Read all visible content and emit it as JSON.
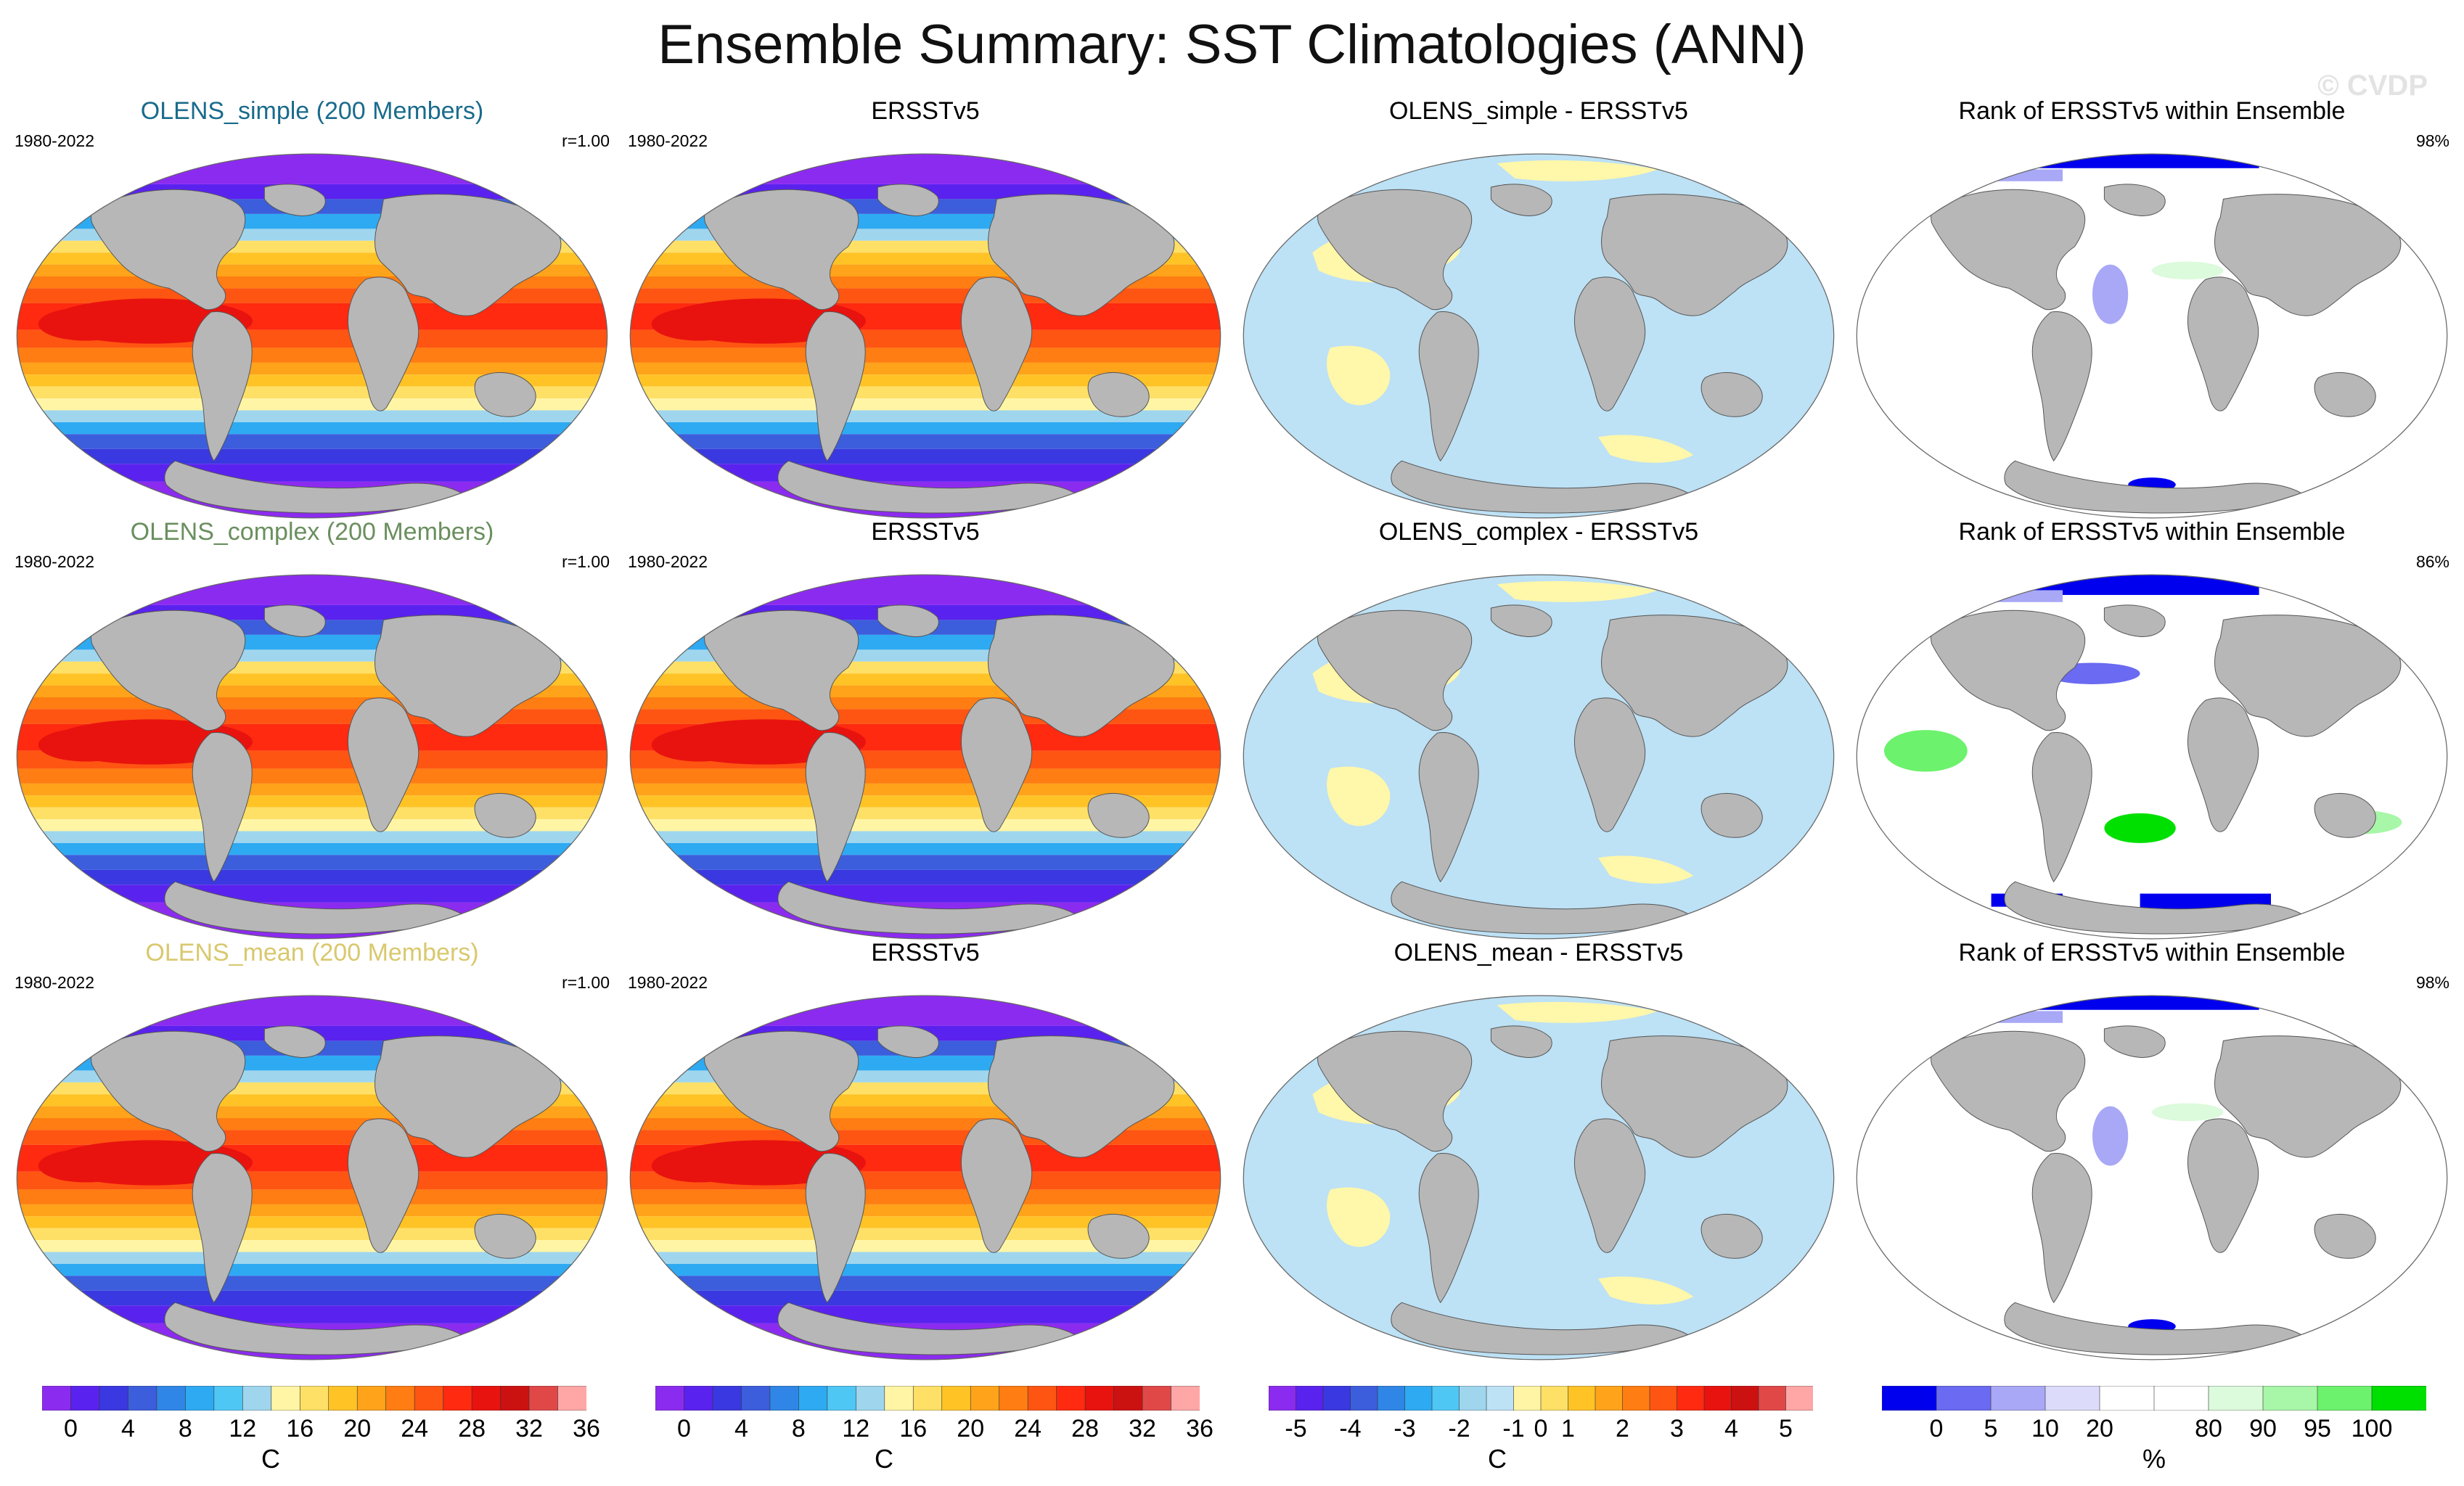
{
  "title": "Ensemble Summary: SST Climatologies (ANN)",
  "watermark": "© CVDP",
  "colors": {
    "land": "#b7b7b7",
    "ocean_blue": "#bde1f5",
    "ocean_yellow": "#fff7aa",
    "series_simple": "#1a6b8c",
    "series_complex": "#6a8f5e",
    "series_mean": "#d9c86e"
  },
  "rows": [
    {
      "ensemble": {
        "title": "OLENS_simple (200 Members)",
        "period": "1980-2022",
        "corr": "r=1.00"
      },
      "obs": {
        "title": "ERSSTv5",
        "period": "1980-2022"
      },
      "diff": {
        "title": "OLENS_simple - ERSSTv5"
      },
      "rank": {
        "title": "Rank of ERSSTv5 within Ensemble",
        "percent": "98%"
      }
    },
    {
      "ensemble": {
        "title": "OLENS_complex (200 Members)",
        "period": "1980-2022",
        "corr": "r=1.00"
      },
      "obs": {
        "title": "ERSSTv5",
        "period": "1980-2022"
      },
      "diff": {
        "title": "OLENS_complex - ERSSTv5"
      },
      "rank": {
        "title": "Rank of ERSSTv5 within Ensemble",
        "percent": "86%"
      }
    },
    {
      "ensemble": {
        "title": "OLENS_mean (200 Members)",
        "period": "1980-2022",
        "corr": "r=1.00"
      },
      "obs": {
        "title": "ERSSTv5",
        "period": "1980-2022"
      },
      "diff": {
        "title": "OLENS_mean - ERSSTv5"
      },
      "rank": {
        "title": "Rank of ERSSTv5 within Ensemble",
        "percent": "98%"
      }
    }
  ],
  "colorbars": [
    {
      "unit": "C",
      "colors": [
        "#8c2bf0",
        "#5a22ee",
        "#3a38e0",
        "#3c5edc",
        "#2f86e6",
        "#2eaaf2",
        "#4fc7f5",
        "#9fd6ee",
        "#fff5a5",
        "#ffe066",
        "#ffc326",
        "#ffa31a",
        "#ff7d12",
        "#ff5512",
        "#ff2a10",
        "#e8130f",
        "#cc1111",
        "#e04848",
        "#ffa6a6"
      ],
      "ticks": [
        "0",
        "4",
        "8",
        "12",
        "16",
        "20",
        "24",
        "28",
        "32",
        "36"
      ],
      "tick_boundaries": [
        1,
        3,
        5,
        7,
        9,
        11,
        13,
        15,
        17,
        19
      ]
    },
    {
      "unit": "C",
      "colors": [
        "#8c2bf0",
        "#5a22ee",
        "#3a38e0",
        "#3c5edc",
        "#2f86e6",
        "#2eaaf2",
        "#4fc7f5",
        "#9fd6ee",
        "#fff5a5",
        "#ffe066",
        "#ffc326",
        "#ffa31a",
        "#ff7d12",
        "#ff5512",
        "#ff2a10",
        "#e8130f",
        "#cc1111",
        "#e04848",
        "#ffa6a6"
      ],
      "ticks": [
        "0",
        "4",
        "8",
        "12",
        "16",
        "20",
        "24",
        "28",
        "32",
        "36"
      ],
      "tick_boundaries": [
        1,
        3,
        5,
        7,
        9,
        11,
        13,
        15,
        17,
        19
      ]
    },
    {
      "unit": "C",
      "colors": [
        "#8c2bf0",
        "#5a22ee",
        "#3a38e0",
        "#3c5edc",
        "#2f86e6",
        "#2eaaf2",
        "#4fc7f5",
        "#9fd6ee",
        "#bde1f5",
        "#fff5a5",
        "#ffe066",
        "#ffc326",
        "#ffa31a",
        "#ff7d12",
        "#ff5512",
        "#ff2a10",
        "#e8130f",
        "#cc1111",
        "#e04848",
        "#ffa6a6"
      ],
      "ticks": [
        "-5",
        "-4",
        "-3",
        "-2",
        "-1",
        "0",
        "1",
        "2",
        "3",
        "4",
        "5"
      ],
      "tick_boundaries": [
        1,
        3,
        5,
        7,
        9,
        10,
        11,
        13,
        15,
        17,
        19
      ]
    },
    {
      "unit": "%",
      "colors": [
        "#0000ee",
        "#6a6af2",
        "#a8a8f6",
        "#dcdcfa",
        "#ffffff",
        "#ffffff",
        "#dcfadc",
        "#a8f6a8",
        "#6cf26c",
        "#00e000"
      ],
      "ticks": [
        "0",
        "5",
        "10",
        "20",
        "80",
        "90",
        "95",
        "100"
      ],
      "tick_boundaries": [
        1,
        2,
        3,
        4,
        6,
        7,
        8,
        9
      ]
    }
  ]
}
